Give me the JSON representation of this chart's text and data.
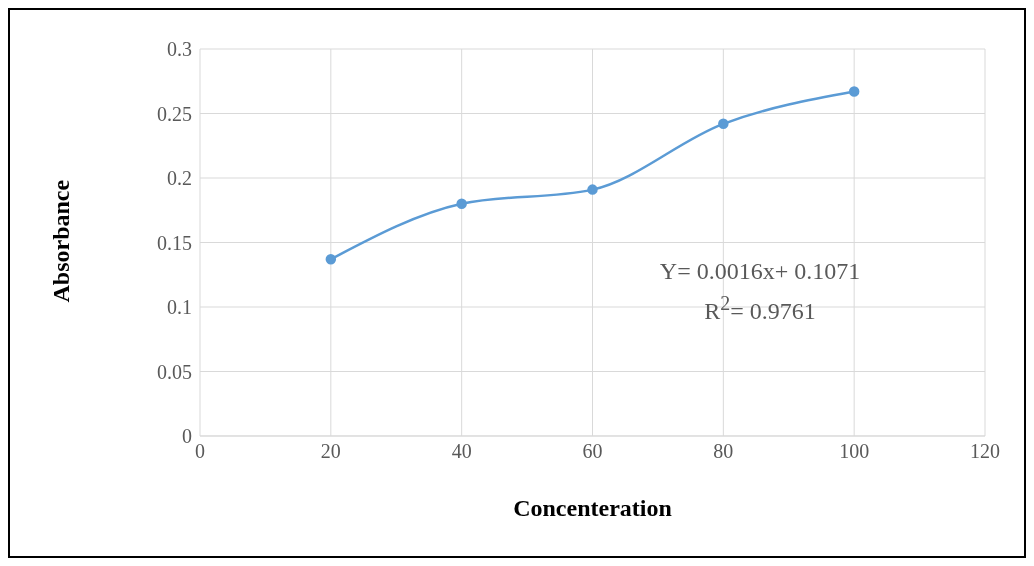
{
  "chart_data": {
    "type": "line",
    "xlabel": "Concenteration",
    "ylabel": "Absorbance",
    "x": [
      20,
      40,
      60,
      80,
      100
    ],
    "values": [
      0.137,
      0.18,
      0.191,
      0.242,
      0.267
    ],
    "color": "#5b9bd5",
    "xlim": [
      0,
      120
    ],
    "xticks": [
      0,
      20,
      40,
      60,
      80,
      100,
      120
    ],
    "ylim": [
      0,
      0.3
    ],
    "yticks": [
      0,
      0.05,
      0.1,
      0.15,
      0.2,
      0.25,
      0.3
    ],
    "grid": true,
    "marker": "circle",
    "line_style": "solid",
    "annotations": [
      "Y= 0.0016x+ 0.1071",
      "R$^{2}$= 0.9761"
    ]
  }
}
